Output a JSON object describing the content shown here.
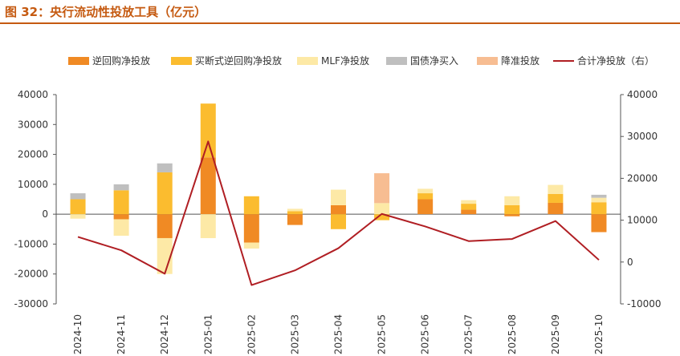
{
  "header": {
    "title": "图 32：央行流动性投放工具（亿元）"
  },
  "chart_data": {
    "type": "bar",
    "stacked": true,
    "categories": [
      "2024-10",
      "2024-11",
      "2024-12",
      "2025-01",
      "2025-02",
      "2025-03",
      "2025-04",
      "2025-05",
      "2025-06",
      "2025-07",
      "2025-08",
      "2025-09",
      "2025-10"
    ],
    "ylim_left": [
      -30000,
      40000
    ],
    "yticks_left": [
      -30000,
      -20000,
      -10000,
      0,
      10000,
      20000,
      30000,
      40000
    ],
    "ylim_right": [
      -10000,
      40000
    ],
    "yticks_right": [
      -10000,
      0,
      10000,
      20000,
      30000,
      40000
    ],
    "series": [
      {
        "name": "逆回购净投放",
        "color": "#f08a24",
        "kind": "bar",
        "values": [
          0,
          -1700,
          -8000,
          19000,
          -9500,
          -3600,
          3000,
          0,
          5000,
          1500,
          -700,
          3800,
          -6000
        ]
      },
      {
        "name": "买断式逆回购净投放",
        "color": "#fbbc2f",
        "kind": "bar",
        "values": [
          5000,
          8000,
          14000,
          18000,
          6000,
          1000,
          -5000,
          -2000,
          2000,
          2000,
          3000,
          3000,
          4000
        ]
      },
      {
        "name": "MLF净投放",
        "color": "#fde9a6",
        "kind": "bar",
        "values": [
          -1500,
          -5500,
          -12000,
          -8000,
          -2000,
          800,
          5200,
          3700,
          1500,
          1200,
          3000,
          3000,
          1500
        ]
      },
      {
        "name": "国债净买入",
        "color": "#bfbfbf",
        "kind": "bar",
        "values": [
          2000,
          2000,
          3000,
          0,
          0,
          0,
          0,
          0,
          0,
          0,
          0,
          0,
          1000
        ]
      },
      {
        "name": "降准投放",
        "color": "#f7bd92",
        "kind": "bar",
        "values": [
          0,
          0,
          0,
          0,
          0,
          0,
          0,
          10000,
          0,
          0,
          0,
          0,
          0
        ]
      },
      {
        "name": "合计净投放（右）",
        "color": "#b01e23",
        "kind": "line",
        "axis": "right",
        "values": [
          6000,
          2800,
          -2800,
          28800,
          -5500,
          -2000,
          3300,
          11500,
          8500,
          5000,
          5500,
          9800,
          500
        ]
      }
    ]
  }
}
